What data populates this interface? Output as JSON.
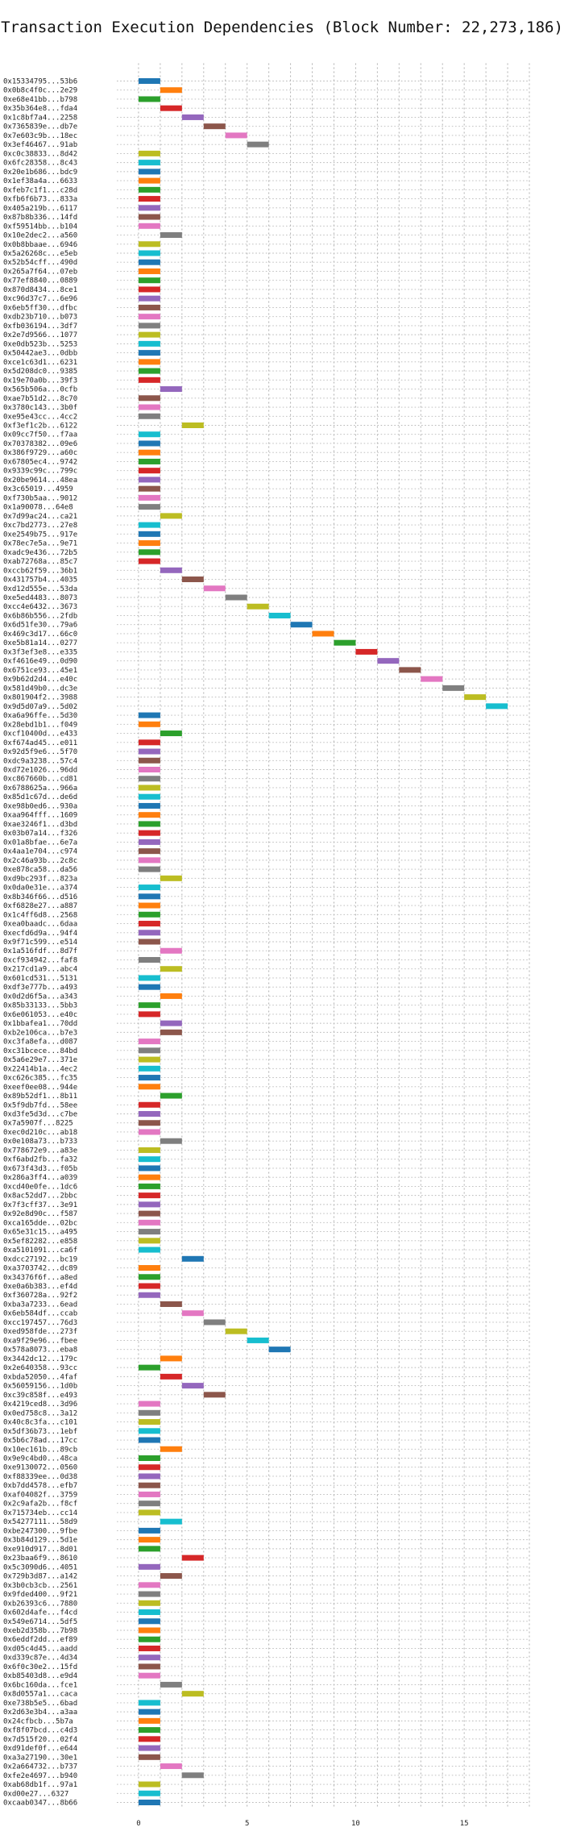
{
  "chart_data": {
    "type": "bar",
    "orientation": "horizontal-gantt",
    "title": "Transaction Execution Dependencies (Block Number: 22,273,186)",
    "xlabel": "",
    "ylabel": "",
    "xlim": [
      -1,
      18
    ],
    "xticks": [
      0,
      5,
      10,
      15
    ],
    "grid": true,
    "legend": "none",
    "colors": [
      "#1f77b4",
      "#ff7f0e",
      "#2ca02c",
      "#d62728",
      "#9467bd",
      "#8c564b",
      "#e377c2",
      "#7f7f7f",
      "#bcbd22",
      "#17becf"
    ],
    "transactions": [
      {
        "hash": "0x15334795...53b6",
        "start": 0,
        "color": "#1f77b4"
      },
      {
        "hash": "0x0b8c4f0c...2e29",
        "start": 1,
        "color": "#ff7f0e"
      },
      {
        "hash": "0xe68e41bb...b798",
        "start": 0,
        "color": "#2ca02c"
      },
      {
        "hash": "0x35b364e8...fda4",
        "start": 1,
        "color": "#d62728"
      },
      {
        "hash": "0x1c8bf7a4...2258",
        "start": 2,
        "color": "#9467bd"
      },
      {
        "hash": "0x7365839e...db7e",
        "start": 3,
        "color": "#8c564b"
      },
      {
        "hash": "0x7e603c9b...18ec",
        "start": 4,
        "color": "#e377c2"
      },
      {
        "hash": "0x3ef46467...91ab",
        "start": 5,
        "color": "#7f7f7f"
      },
      {
        "hash": "0xc0c38833...8d42",
        "start": 0,
        "color": "#bcbd22"
      },
      {
        "hash": "0x6fc28358...8c43",
        "start": 0,
        "color": "#17becf"
      },
      {
        "hash": "0x20e1b686...bdc9",
        "start": 0,
        "color": "#1f77b4"
      },
      {
        "hash": "0x1ef38a4a...6633",
        "start": 0,
        "color": "#ff7f0e"
      },
      {
        "hash": "0xfeb7c1f1...c28d",
        "start": 0,
        "color": "#2ca02c"
      },
      {
        "hash": "0xfb6f6b73...833a",
        "start": 0,
        "color": "#d62728"
      },
      {
        "hash": "0x405a219b...6117",
        "start": 0,
        "color": "#9467bd"
      },
      {
        "hash": "0x87b8b336...14fd",
        "start": 0,
        "color": "#8c564b"
      },
      {
        "hash": "0xf59514bb...b104",
        "start": 0,
        "color": "#e377c2"
      },
      {
        "hash": "0x10e2dec2...a560",
        "start": 1,
        "color": "#7f7f7f"
      },
      {
        "hash": "0x0b8bbaae...6946",
        "start": 0,
        "color": "#bcbd22"
      },
      {
        "hash": "0x5a26268c...e5eb",
        "start": 0,
        "color": "#17becf"
      },
      {
        "hash": "0x52b54cff...490d",
        "start": 0,
        "color": "#1f77b4"
      },
      {
        "hash": "0x265a7f64...07eb",
        "start": 0,
        "color": "#ff7f0e"
      },
      {
        "hash": "0x77ef8840...0889",
        "start": 0,
        "color": "#2ca02c"
      },
      {
        "hash": "0x870d8434...8ce1",
        "start": 0,
        "color": "#d62728"
      },
      {
        "hash": "0xc96d37c7...6e96",
        "start": 0,
        "color": "#9467bd"
      },
      {
        "hash": "0x6eb5ff30...dfbc",
        "start": 0,
        "color": "#8c564b"
      },
      {
        "hash": "0xdb23b710...b073",
        "start": 0,
        "color": "#e377c2"
      },
      {
        "hash": "0xfb036194...3df7",
        "start": 0,
        "color": "#7f7f7f"
      },
      {
        "hash": "0x2e7d9566...1077",
        "start": 0,
        "color": "#bcbd22"
      },
      {
        "hash": "0xe0db523b...5253",
        "start": 0,
        "color": "#17becf"
      },
      {
        "hash": "0x50442ae3...0dbb",
        "start": 0,
        "color": "#1f77b4"
      },
      {
        "hash": "0xce1c63d1...6231",
        "start": 0,
        "color": "#ff7f0e"
      },
      {
        "hash": "0x5d208dc0...9385",
        "start": 0,
        "color": "#2ca02c"
      },
      {
        "hash": "0x19e70a0b...39f3",
        "start": 0,
        "color": "#d62728"
      },
      {
        "hash": "0x565b506a...0cfb",
        "start": 1,
        "color": "#9467bd"
      },
      {
        "hash": "0xae7b51d2...8c70",
        "start": 0,
        "color": "#8c564b"
      },
      {
        "hash": "0x3780c143...3b0f",
        "start": 0,
        "color": "#e377c2"
      },
      {
        "hash": "0xe95e43cc...4cc2",
        "start": 0,
        "color": "#7f7f7f"
      },
      {
        "hash": "0xf3ef1c2b...6122",
        "start": 2,
        "color": "#bcbd22"
      },
      {
        "hash": "0x09cc7f50...f7aa",
        "start": 0,
        "color": "#17becf"
      },
      {
        "hash": "0x70378382...09e6",
        "start": 0,
        "color": "#1f77b4"
      },
      {
        "hash": "0x386f9729...a60c",
        "start": 0,
        "color": "#ff7f0e"
      },
      {
        "hash": "0x67805ec4...9742",
        "start": 0,
        "color": "#2ca02c"
      },
      {
        "hash": "0x9339c99c...799c",
        "start": 0,
        "color": "#d62728"
      },
      {
        "hash": "0x20be9614...48ea",
        "start": 0,
        "color": "#9467bd"
      },
      {
        "hash": "0x3c65019...4959",
        "start": 0,
        "color": "#8c564b"
      },
      {
        "hash": "0xf730b5aa...9012",
        "start": 0,
        "color": "#e377c2"
      },
      {
        "hash": "0x1a90078...64e8",
        "start": 0,
        "color": "#7f7f7f"
      },
      {
        "hash": "0x7d99ac24...ca21",
        "start": 1,
        "color": "#bcbd22"
      },
      {
        "hash": "0xc7bd2773...27e8",
        "start": 0,
        "color": "#17becf"
      },
      {
        "hash": "0xe2549b75...917e",
        "start": 0,
        "color": "#1f77b4"
      },
      {
        "hash": "0x78ec7e5a...9e71",
        "start": 0,
        "color": "#ff7f0e"
      },
      {
        "hash": "0xadc9e436...72b5",
        "start": 0,
        "color": "#2ca02c"
      },
      {
        "hash": "0xab72768a...85c7",
        "start": 0,
        "color": "#d62728"
      },
      {
        "hash": "0xccb62f59...36b1",
        "start": 1,
        "color": "#9467bd"
      },
      {
        "hash": "0x431757b4...4035",
        "start": 2,
        "color": "#8c564b"
      },
      {
        "hash": "0xd12d555e...53da",
        "start": 3,
        "color": "#e377c2"
      },
      {
        "hash": "0xe5ed4483...8073",
        "start": 4,
        "color": "#7f7f7f"
      },
      {
        "hash": "0xcc4e6432...3673",
        "start": 5,
        "color": "#bcbd22"
      },
      {
        "hash": "0x6b86b556...2fdb",
        "start": 6,
        "color": "#17becf"
      },
      {
        "hash": "0x6d51fe30...79a6",
        "start": 7,
        "color": "#1f77b4"
      },
      {
        "hash": "0x469c3d17...66c0",
        "start": 8,
        "color": "#ff7f0e"
      },
      {
        "hash": "0xe5b81a14...0277",
        "start": 9,
        "color": "#2ca02c"
      },
      {
        "hash": "0x3f3ef3e8...e335",
        "start": 10,
        "color": "#d62728"
      },
      {
        "hash": "0xf4616e49...0d90",
        "start": 11,
        "color": "#9467bd"
      },
      {
        "hash": "0x6751ce93...45e1",
        "start": 12,
        "color": "#8c564b"
      },
      {
        "hash": "0x9b62d2d4...e40c",
        "start": 13,
        "color": "#e377c2"
      },
      {
        "hash": "0x581d49b0...dc3e",
        "start": 14,
        "color": "#7f7f7f"
      },
      {
        "hash": "0x801904f2...3988",
        "start": 15,
        "color": "#bcbd22"
      },
      {
        "hash": "0x9d5d07a9...5d02",
        "start": 16,
        "color": "#17becf"
      },
      {
        "hash": "0xa6a96ffe...5d30",
        "start": 0,
        "color": "#1f77b4"
      },
      {
        "hash": "0x28ebd1b1...f049",
        "start": 0,
        "color": "#ff7f0e"
      },
      {
        "hash": "0xcf10400d...e433",
        "start": 1,
        "color": "#2ca02c"
      },
      {
        "hash": "0xf674ad45...e011",
        "start": 0,
        "color": "#d62728"
      },
      {
        "hash": "0x92d5f9e6...5f70",
        "start": 0,
        "color": "#9467bd"
      },
      {
        "hash": "0xdc9a3238...57c4",
        "start": 0,
        "color": "#8c564b"
      },
      {
        "hash": "0xd72e1026...96dd",
        "start": 0,
        "color": "#e377c2"
      },
      {
        "hash": "0xc867660b...cd81",
        "start": 0,
        "color": "#7f7f7f"
      },
      {
        "hash": "0x6788625a...966a",
        "start": 0,
        "color": "#bcbd22"
      },
      {
        "hash": "0x85d1c67d...de6d",
        "start": 0,
        "color": "#17becf"
      },
      {
        "hash": "0xe98b0ed6...930a",
        "start": 0,
        "color": "#1f77b4"
      },
      {
        "hash": "0xaa964fff...1609",
        "start": 0,
        "color": "#ff7f0e"
      },
      {
        "hash": "0xae3246f1...d3bd",
        "start": 0,
        "color": "#2ca02c"
      },
      {
        "hash": "0x03b07a14...f326",
        "start": 0,
        "color": "#d62728"
      },
      {
        "hash": "0x01a8bfae...6e7a",
        "start": 0,
        "color": "#9467bd"
      },
      {
        "hash": "0x4aa1e704...c974",
        "start": 0,
        "color": "#8c564b"
      },
      {
        "hash": "0x2c46a93b...2c8c",
        "start": 0,
        "color": "#e377c2"
      },
      {
        "hash": "0xe878ca58...da56",
        "start": 0,
        "color": "#7f7f7f"
      },
      {
        "hash": "0xd9bc293f...823a",
        "start": 1,
        "color": "#bcbd22"
      },
      {
        "hash": "0x0da0e31e...a374",
        "start": 0,
        "color": "#17becf"
      },
      {
        "hash": "0x8b346f66...d516",
        "start": 0,
        "color": "#1f77b4"
      },
      {
        "hash": "0xf6828e27...a887",
        "start": 0,
        "color": "#ff7f0e"
      },
      {
        "hash": "0x1c4ff6d8...2568",
        "start": 0,
        "color": "#2ca02c"
      },
      {
        "hash": "0xea0baadc...6daa",
        "start": 0,
        "color": "#d62728"
      },
      {
        "hash": "0xecfd6d9a...94f4",
        "start": 0,
        "color": "#9467bd"
      },
      {
        "hash": "0x9f71c599...e514",
        "start": 0,
        "color": "#8c564b"
      },
      {
        "hash": "0x1a516fdf...8d7f",
        "start": 1,
        "color": "#e377c2"
      },
      {
        "hash": "0xcf934942...faf8",
        "start": 0,
        "color": "#7f7f7f"
      },
      {
        "hash": "0x217cd1a9...abc4",
        "start": 1,
        "color": "#bcbd22"
      },
      {
        "hash": "0x601cd531...5131",
        "start": 0,
        "color": "#17becf"
      },
      {
        "hash": "0xdf3e777b...a493",
        "start": 0,
        "color": "#1f77b4"
      },
      {
        "hash": "0x0d2d6f5a...a343",
        "start": 1,
        "color": "#ff7f0e"
      },
      {
        "hash": "0x85b33133...5bb3",
        "start": 0,
        "color": "#2ca02c"
      },
      {
        "hash": "0x6e061053...e40c",
        "start": 0,
        "color": "#d62728"
      },
      {
        "hash": "0x1bbafea1...70dd",
        "start": 1,
        "color": "#9467bd"
      },
      {
        "hash": "0xb2e106ca...b7e3",
        "start": 1,
        "color": "#8c564b"
      },
      {
        "hash": "0xc3fa8efa...d087",
        "start": 0,
        "color": "#e377c2"
      },
      {
        "hash": "0xc31bcece...84bd",
        "start": 0,
        "color": "#7f7f7f"
      },
      {
        "hash": "0x5a6e29e7...371e",
        "start": 0,
        "color": "#bcbd22"
      },
      {
        "hash": "0x22414b1a...4ec2",
        "start": 0,
        "color": "#17becf"
      },
      {
        "hash": "0xc626c385...fc35",
        "start": 0,
        "color": "#1f77b4"
      },
      {
        "hash": "0xeef0ee08...944e",
        "start": 0,
        "color": "#ff7f0e"
      },
      {
        "hash": "0x89b52df1...8b11",
        "start": 1,
        "color": "#2ca02c"
      },
      {
        "hash": "0x5f9db7fd...58ee",
        "start": 0,
        "color": "#d62728"
      },
      {
        "hash": "0xd3fe5d3d...c7be",
        "start": 0,
        "color": "#9467bd"
      },
      {
        "hash": "0x7a5907f...8225",
        "start": 0,
        "color": "#8c564b"
      },
      {
        "hash": "0xec0d210c...ab18",
        "start": 0,
        "color": "#e377c2"
      },
      {
        "hash": "0x0e108a73...b733",
        "start": 1,
        "color": "#7f7f7f"
      },
      {
        "hash": "0x778672e9...a83e",
        "start": 0,
        "color": "#bcbd22"
      },
      {
        "hash": "0xf6abd2fb...fa32",
        "start": 0,
        "color": "#17becf"
      },
      {
        "hash": "0x673f43d3...f05b",
        "start": 0,
        "color": "#1f77b4"
      },
      {
        "hash": "0x286a3ff4...a039",
        "start": 0,
        "color": "#ff7f0e"
      },
      {
        "hash": "0xcd40e0fe...1dc6",
        "start": 0,
        "color": "#2ca02c"
      },
      {
        "hash": "0x8ac52dd7...2bbc",
        "start": 0,
        "color": "#d62728"
      },
      {
        "hash": "0x7f3cff37...3e91",
        "start": 0,
        "color": "#9467bd"
      },
      {
        "hash": "0x92e8d90c...f587",
        "start": 0,
        "color": "#8c564b"
      },
      {
        "hash": "0xca165dde...02bc",
        "start": 0,
        "color": "#e377c2"
      },
      {
        "hash": "0x65e31c15...a495",
        "start": 0,
        "color": "#7f7f7f"
      },
      {
        "hash": "0x5ef82282...e858",
        "start": 0,
        "color": "#bcbd22"
      },
      {
        "hash": "0xa5101091...ca6f",
        "start": 0,
        "color": "#17becf"
      },
      {
        "hash": "0xdcc27192...bc19",
        "start": 2,
        "color": "#1f77b4"
      },
      {
        "hash": "0xa3703742...dc89",
        "start": 0,
        "color": "#ff7f0e"
      },
      {
        "hash": "0x34376f6f...a8ed",
        "start": 0,
        "color": "#2ca02c"
      },
      {
        "hash": "0xe0a6b383...ef4d",
        "start": 0,
        "color": "#d62728"
      },
      {
        "hash": "0xf360728a...92f2",
        "start": 0,
        "color": "#9467bd"
      },
      {
        "hash": "0xba3a7233...6ead",
        "start": 1,
        "color": "#8c564b"
      },
      {
        "hash": "0x6eb584df...ccab",
        "start": 2,
        "color": "#e377c2"
      },
      {
        "hash": "0xcc197457...76d3",
        "start": 3,
        "color": "#7f7f7f"
      },
      {
        "hash": "0xed958fde...273f",
        "start": 4,
        "color": "#bcbd22"
      },
      {
        "hash": "0xa9f29e96...fbee",
        "start": 5,
        "color": "#17becf"
      },
      {
        "hash": "0x578a8073...eba8",
        "start": 6,
        "color": "#1f77b4"
      },
      {
        "hash": "0x3442dc12...179c",
        "start": 1,
        "color": "#ff7f0e"
      },
      {
        "hash": "0x2e640358...93cc",
        "start": 0,
        "color": "#2ca02c"
      },
      {
        "hash": "0xbda52050...4faf",
        "start": 1,
        "color": "#d62728"
      },
      {
        "hash": "0x56059156...1d0b",
        "start": 2,
        "color": "#9467bd"
      },
      {
        "hash": "0xc39c858f...e493",
        "start": 3,
        "color": "#8c564b"
      },
      {
        "hash": "0x4219ced8...3d96",
        "start": 0,
        "color": "#e377c2"
      },
      {
        "hash": "0x0ed758c8...3a12",
        "start": 0,
        "color": "#7f7f7f"
      },
      {
        "hash": "0x40c8c3fa...c101",
        "start": 0,
        "color": "#bcbd22"
      },
      {
        "hash": "0x5df36b73...1ebf",
        "start": 0,
        "color": "#17becf"
      },
      {
        "hash": "0x5b6c78ad...17cc",
        "start": 0,
        "color": "#1f77b4"
      },
      {
        "hash": "0x10ec161b...89cb",
        "start": 1,
        "color": "#ff7f0e"
      },
      {
        "hash": "0x9e9c4bd0...48ca",
        "start": 0,
        "color": "#2ca02c"
      },
      {
        "hash": "0xe9130072...0560",
        "start": 0,
        "color": "#d62728"
      },
      {
        "hash": "0xf88339ee...0d38",
        "start": 0,
        "color": "#9467bd"
      },
      {
        "hash": "0xb7dd4578...efb7",
        "start": 0,
        "color": "#8c564b"
      },
      {
        "hash": "0xaf04082f...3759",
        "start": 0,
        "color": "#e377c2"
      },
      {
        "hash": "0x2c9afa2b...f8cf",
        "start": 0,
        "color": "#7f7f7f"
      },
      {
        "hash": "0x715734eb...cc14",
        "start": 0,
        "color": "#bcbd22"
      },
      {
        "hash": "0x54277111...58d9",
        "start": 1,
        "color": "#17becf"
      },
      {
        "hash": "0xbe247300...9fbe",
        "start": 0,
        "color": "#1f77b4"
      },
      {
        "hash": "0x3b84d129...5d1e",
        "start": 0,
        "color": "#ff7f0e"
      },
      {
        "hash": "0xe910d917...8d01",
        "start": 0,
        "color": "#2ca02c"
      },
      {
        "hash": "0x23baa6f9...8610",
        "start": 2,
        "color": "#d62728"
      },
      {
        "hash": "0x5c3090d6...4051",
        "start": 0,
        "color": "#9467bd"
      },
      {
        "hash": "0x729b3d87...a142",
        "start": 1,
        "color": "#8c564b"
      },
      {
        "hash": "0x3b0cb3cb...2561",
        "start": 0,
        "color": "#e377c2"
      },
      {
        "hash": "0x9fded400...9f21",
        "start": 0,
        "color": "#7f7f7f"
      },
      {
        "hash": "0xb26393c6...7880",
        "start": 0,
        "color": "#bcbd22"
      },
      {
        "hash": "0x602d4afe...f4cd",
        "start": 0,
        "color": "#17becf"
      },
      {
        "hash": "0x549e6714...5df5",
        "start": 0,
        "color": "#1f77b4"
      },
      {
        "hash": "0xeb2d358b...7b98",
        "start": 0,
        "color": "#ff7f0e"
      },
      {
        "hash": "0x6eddf2dd...ef89",
        "start": 0,
        "color": "#2ca02c"
      },
      {
        "hash": "0xd05c4d45...aadd",
        "start": 0,
        "color": "#d62728"
      },
      {
        "hash": "0xd339c87e...4d34",
        "start": 0,
        "color": "#9467bd"
      },
      {
        "hash": "0x6f0c30e2...15fd",
        "start": 0,
        "color": "#8c564b"
      },
      {
        "hash": "0xb85403d8...e9d4",
        "start": 0,
        "color": "#e377c2"
      },
      {
        "hash": "0x6bc160da...fce1",
        "start": 1,
        "color": "#7f7f7f"
      },
      {
        "hash": "0x8d0557a1...caca",
        "start": 2,
        "color": "#bcbd22"
      },
      {
        "hash": "0xe738b5e5...6bad",
        "start": 0,
        "color": "#17becf"
      },
      {
        "hash": "0x2d63e3b4...a3aa",
        "start": 0,
        "color": "#1f77b4"
      },
      {
        "hash": "0x24cfbcb...5b7a",
        "start": 0,
        "color": "#ff7f0e"
      },
      {
        "hash": "0xf8f07bcd...c4d3",
        "start": 0,
        "color": "#2ca02c"
      },
      {
        "hash": "0x7d515f20...02f4",
        "start": 0,
        "color": "#d62728"
      },
      {
        "hash": "0xd91def0f...e644",
        "start": 0,
        "color": "#9467bd"
      },
      {
        "hash": "0xa3a27190...30e1",
        "start": 0,
        "color": "#8c564b"
      },
      {
        "hash": "0x2a664732...b737",
        "start": 1,
        "color": "#e377c2"
      },
      {
        "hash": "0xfe2e4697...b940",
        "start": 2,
        "color": "#7f7f7f"
      },
      {
        "hash": "0xab68db1f...97a1",
        "start": 0,
        "color": "#bcbd22"
      },
      {
        "hash": "0xd00e27...6327",
        "start": 0,
        "color": "#17becf"
      },
      {
        "hash": "0xcaab0347...8b66",
        "start": 0,
        "color": "#1f77b4"
      }
    ]
  }
}
